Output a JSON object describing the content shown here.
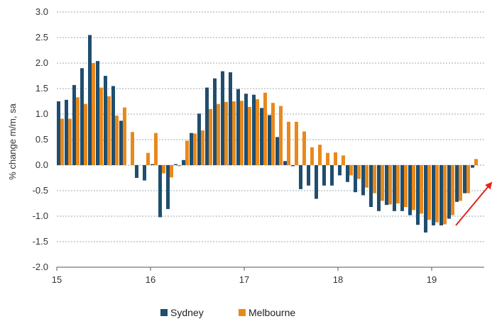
{
  "chart_data": {
    "type": "bar",
    "ylabel": "% change m/m, sa",
    "ylim": [
      -2.0,
      3.0
    ],
    "yticks": [
      "3.0",
      "2.5",
      "2.0",
      "1.5",
      "1.0",
      "0.5",
      "0.0",
      "-0.5",
      "-1.0",
      "-1.5",
      "-2.0"
    ],
    "ytick_values": [
      3.0,
      2.5,
      2.0,
      1.5,
      1.0,
      0.5,
      0.0,
      -0.5,
      -1.0,
      -1.5,
      -2.0
    ],
    "xticks": [
      "15",
      "16",
      "17",
      "18",
      "19"
    ],
    "xtick_index": [
      0,
      12,
      24,
      36,
      48
    ],
    "grid": "horizontal-dotted",
    "legend_position": "bottom-center",
    "annotation": "red arrow pointing up-right at latest values",
    "colors": {
      "sydney": "#1f4e6e",
      "melbourne": "#e8891c",
      "grid": "#9aa9b6",
      "arrow": "#e8211c"
    },
    "series": [
      {
        "name": "Sydney",
        "values": [
          1.25,
          1.28,
          1.57,
          1.9,
          2.55,
          2.04,
          1.75,
          1.55,
          0.87,
          0.0,
          -0.25,
          -0.3,
          0.02,
          -1.02,
          -0.86,
          0.02,
          0.1,
          0.63,
          1.01,
          1.52,
          1.7,
          1.84,
          1.82,
          1.49,
          1.4,
          1.38,
          1.12,
          0.98,
          0.55,
          0.08,
          -0.02,
          -0.47,
          -0.4,
          -0.66,
          -0.4,
          -0.4,
          -0.2,
          -0.33,
          -0.53,
          -0.59,
          -0.82,
          -0.9,
          -0.78,
          -0.9,
          -0.9,
          -0.98,
          -1.17,
          -1.32,
          -1.18,
          -1.18,
          -1.05,
          -0.72,
          -0.55,
          -0.05
        ]
      },
      {
        "name": "Melbourne",
        "values": [
          0.91,
          0.91,
          1.33,
          1.2,
          2.0,
          1.52,
          1.35,
          0.97,
          1.13,
          0.65,
          0.0,
          0.24,
          0.63,
          -0.16,
          -0.24,
          -0.02,
          0.48,
          0.62,
          0.68,
          1.1,
          1.2,
          1.24,
          1.25,
          1.26,
          1.14,
          1.29,
          1.42,
          1.22,
          1.16,
          0.85,
          0.85,
          0.66,
          0.35,
          0.4,
          0.24,
          0.25,
          0.19,
          -0.2,
          -0.27,
          -0.44,
          -0.55,
          -0.7,
          -0.77,
          -0.75,
          -0.82,
          -0.88,
          -0.95,
          -1.07,
          -1.12,
          -1.16,
          -0.98,
          -0.7,
          -0.55,
          0.12
        ]
      }
    ]
  }
}
